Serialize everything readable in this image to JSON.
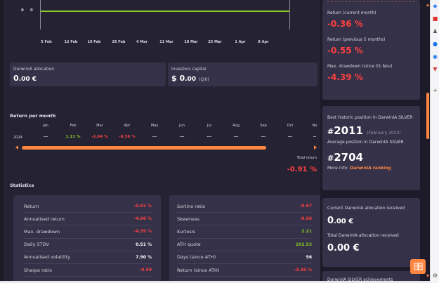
{
  "chart": {
    "y_labels": [
      "0",
      "0"
    ],
    "x_labels": [
      "5 Feb",
      "12 Feb",
      "19 Feb",
      "26 Feb",
      "4 Mar",
      "11 Mar",
      "18 Mar",
      "25 Mar",
      "1 Apr",
      "8 Apr"
    ],
    "line_color": "#8ac926"
  },
  "allocation": {
    "label": "DarwinIA allocation",
    "value_int": "0",
    "value_dec": ".00 €"
  },
  "investors": {
    "label": "Investors capital",
    "value_prefix": "$ 0",
    "value_dec": ".00",
    "count": "0"
  },
  "return_per_month": {
    "title": "Return per month",
    "year": "2024",
    "months": [
      {
        "name": "Jan",
        "value": "---",
        "tone": "neu"
      },
      {
        "name": "Feb",
        "value": "1.11 %",
        "tone": "pos"
      },
      {
        "name": "Mar",
        "value": "-1.64 %",
        "tone": "neg"
      },
      {
        "name": "Apr",
        "value": "-0.36 %",
        "tone": "neg"
      },
      {
        "name": "May",
        "value": "---",
        "tone": "neu"
      },
      {
        "name": "Jun",
        "value": "---",
        "tone": "neu"
      },
      {
        "name": "Jul",
        "value": "---",
        "tone": "neu"
      },
      {
        "name": "Aug",
        "value": "---",
        "tone": "neu"
      },
      {
        "name": "Sep",
        "value": "---",
        "tone": "neu"
      },
      {
        "name": "Oct",
        "value": "---",
        "tone": "neu"
      },
      {
        "name": "No",
        "value": "--",
        "tone": "neu"
      }
    ],
    "total_label": "Total return",
    "total_value": "-0.91 %"
  },
  "statistics": {
    "title": "Statistics",
    "left": [
      {
        "name": "Return",
        "value": "-0.91 %",
        "tone": "neg"
      },
      {
        "name": "Annualised return",
        "value": "-4.66 %",
        "tone": "neg"
      },
      {
        "name": "Max. drawdown",
        "value": "-4.39 %",
        "tone": "neg"
      },
      {
        "name": "Daily STDV",
        "value": "0.51 %",
        "tone": "white"
      },
      {
        "name": "Annualised volatility",
        "value": "7.90 %",
        "tone": "white"
      },
      {
        "name": "Sharpe ratio",
        "value": "-0.59",
        "tone": "neg"
      }
    ],
    "right": [
      {
        "name": "Sortino ratio",
        "value": "-0.67",
        "tone": "neg"
      },
      {
        "name": "Skewness",
        "value": "-0.96",
        "tone": "neg"
      },
      {
        "name": "Kurtosis",
        "value": "2.21",
        "tone": "pos"
      },
      {
        "name": "ATH quote",
        "value": "102.53",
        "tone": "pos"
      },
      {
        "name": "Days (since ATH)",
        "value": "56",
        "tone": "white"
      },
      {
        "name": "Return (since ATH)",
        "value": "-3.36 %",
        "tone": "neg"
      }
    ]
  },
  "returns_card": {
    "current_month_label": "Return (current month)",
    "current_month_value": "-0.36 %",
    "prev5_label": "Return (previous 5 months)",
    "prev5_value": "-0.55 %",
    "max_dd_label": "Max. drawdown (since 01 Nov)",
    "max_dd_value": "-4.39 %"
  },
  "ranking_card": {
    "best_label": "Best historic position in DarwinIA SILVER",
    "best_hash": "#",
    "best_value": "2011",
    "best_month": "(February 2024)",
    "avg_label": "Average position in DarwinIA SILVER",
    "avg_hash": "#",
    "avg_value": "2704",
    "more_info": "More info:",
    "link_text": "DarwinIA ranking"
  },
  "allocation_card": {
    "current_label": "Current DarwinIA allocation received",
    "current_int": "0",
    "current_dec": ".00 €",
    "total_label": "Total DarwinIA allocation received",
    "total_value": "0.00 €"
  },
  "achievements": {
    "title": "DarwinIA SILVER achievements"
  },
  "colors": {
    "accent": "#ff8640",
    "positive": "#8ac926",
    "negative": "#ff4040",
    "card_bg": "#343148",
    "page_bg": "#252333"
  }
}
